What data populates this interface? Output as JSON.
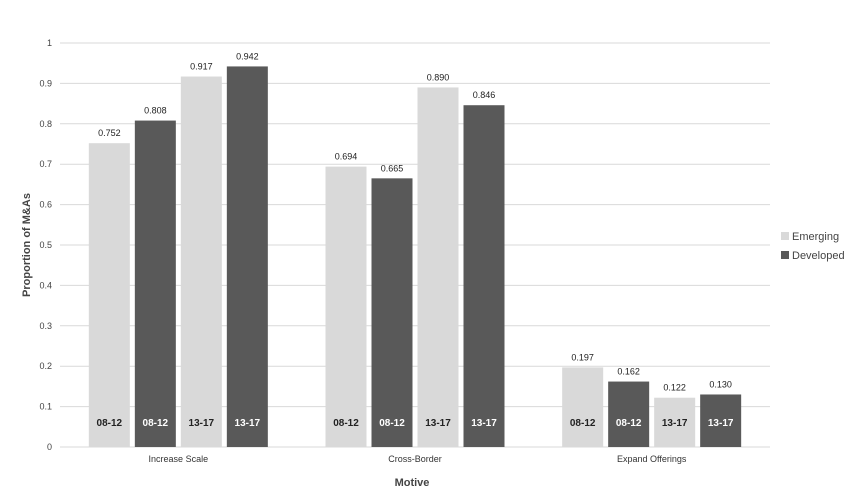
{
  "chart_data": {
    "type": "bar",
    "title": "",
    "xlabel": "Motive",
    "ylabel": "Proportion of M&As",
    "ylim": [
      0,
      1
    ],
    "yticks": [
      "0",
      "0.1",
      "0.2",
      "0.3",
      "0.4",
      "0.5",
      "0.6",
      "0.7",
      "0.8",
      "0.9",
      "1"
    ],
    "grid": true,
    "legend": "right",
    "categories": [
      "Increase Scale",
      "Cross-Border",
      "Expand Offerings"
    ],
    "bars": [
      {
        "group": 0,
        "series": "Emerging",
        "period": "08-12",
        "value": 0.752,
        "label": "0.752"
      },
      {
        "group": 0,
        "series": "Developed",
        "period": "08-12",
        "value": 0.808,
        "label": "0.808"
      },
      {
        "group": 0,
        "series": "Emerging",
        "period": "13-17",
        "value": 0.917,
        "label": "0.917"
      },
      {
        "group": 0,
        "series": "Developed",
        "period": "13-17",
        "value": 0.942,
        "label": "0.942"
      },
      {
        "group": 1,
        "series": "Emerging",
        "period": "08-12",
        "value": 0.694,
        "label": "0.694"
      },
      {
        "group": 1,
        "series": "Developed",
        "period": "08-12",
        "value": 0.665,
        "label": "0.665"
      },
      {
        "group": 1,
        "series": "Emerging",
        "period": "13-17",
        "value": 0.89,
        "label": "0.890"
      },
      {
        "group": 1,
        "series": "Developed",
        "period": "13-17",
        "value": 0.846,
        "label": "0.846"
      },
      {
        "group": 2,
        "series": "Emerging",
        "period": "08-12",
        "value": 0.197,
        "label": "0.197"
      },
      {
        "group": 2,
        "series": "Developed",
        "period": "08-12",
        "value": 0.162,
        "label": "0.162"
      },
      {
        "group": 2,
        "series": "Emerging",
        "period": "13-17",
        "value": 0.122,
        "label": "0.122"
      },
      {
        "group": 2,
        "series": "Developed",
        "period": "13-17",
        "value": 0.13,
        "label": "0.130"
      }
    ],
    "legend_entries": [
      {
        "name": "Emerging",
        "color": "#d9d9d9"
      },
      {
        "name": "Developed",
        "color": "#595959"
      }
    ],
    "colors": {
      "Emerging": "#d9d9d9",
      "Developed": "#595959",
      "gridline": "#d9d9d9",
      "inbar_text_on_light": "#222222",
      "inbar_text_on_dark": "#ffffff"
    }
  }
}
